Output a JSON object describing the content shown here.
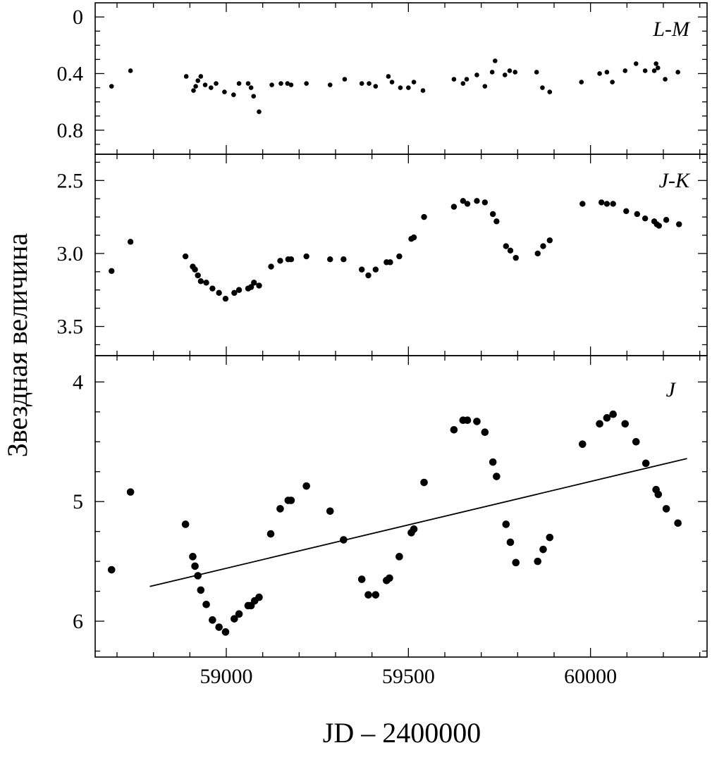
{
  "chart_data": {
    "type": "scatter",
    "xlabel": "JD – 2400000",
    "ylabel": "Звездная величина",
    "x_ticks": [
      "59000",
      "59500",
      "60000"
    ],
    "xlim": [
      58640,
      60320
    ],
    "panels": [
      {
        "label": "L-M",
        "ylim": [
          -0.1,
          0.97
        ],
        "y_ticks": [
          "0",
          "0.4",
          "0.8"
        ],
        "y_tick_values": [
          0,
          0.4,
          0.8
        ],
        "marker": "small",
        "points": [
          [
            58685,
            0.49
          ],
          [
            58737,
            0.38
          ],
          [
            58890,
            0.42
          ],
          [
            58910,
            0.52
          ],
          [
            58916,
            0.49
          ],
          [
            58922,
            0.45
          ],
          [
            58930,
            0.42
          ],
          [
            58942,
            0.48
          ],
          [
            58958,
            0.5
          ],
          [
            58972,
            0.47
          ],
          [
            58995,
            0.53
          ],
          [
            59020,
            0.55
          ],
          [
            59035,
            0.47
          ],
          [
            59060,
            0.47
          ],
          [
            59068,
            0.5
          ],
          [
            59075,
            0.56
          ],
          [
            59090,
            0.67
          ],
          [
            59125,
            0.48
          ],
          [
            59150,
            0.47
          ],
          [
            59168,
            0.47
          ],
          [
            59178,
            0.48
          ],
          [
            59220,
            0.47
          ],
          [
            59285,
            0.48
          ],
          [
            59325,
            0.44
          ],
          [
            59372,
            0.47
          ],
          [
            59392,
            0.47
          ],
          [
            59410,
            0.49
          ],
          [
            59445,
            0.42
          ],
          [
            59455,
            0.46
          ],
          [
            59478,
            0.5
          ],
          [
            59500,
            0.5
          ],
          [
            59515,
            0.46
          ],
          [
            59540,
            0.52
          ],
          [
            59625,
            0.44
          ],
          [
            59650,
            0.47
          ],
          [
            59660,
            0.44
          ],
          [
            59688,
            0.41
          ],
          [
            59710,
            0.49
          ],
          [
            59730,
            0.39
          ],
          [
            59738,
            0.31
          ],
          [
            59765,
            0.41
          ],
          [
            59778,
            0.38
          ],
          [
            59793,
            0.39
          ],
          [
            59852,
            0.39
          ],
          [
            59868,
            0.5
          ],
          [
            59888,
            0.53
          ],
          [
            59975,
            0.46
          ],
          [
            60025,
            0.4
          ],
          [
            60045,
            0.39
          ],
          [
            60060,
            0.46
          ],
          [
            60095,
            0.38
          ],
          [
            60125,
            0.33
          ],
          [
            60150,
            0.38
          ],
          [
            60175,
            0.38
          ],
          [
            60180,
            0.33
          ],
          [
            60185,
            0.36
          ],
          [
            60205,
            0.44
          ],
          [
            60240,
            0.39
          ]
        ]
      },
      {
        "label": "J-K",
        "ylim": [
          2.32,
          3.7
        ],
        "y_ticks": [
          "2.5",
          "3.0",
          "3.5"
        ],
        "y_tick_values": [
          2.5,
          3.0,
          3.5
        ],
        "marker": "medium",
        "points": [
          [
            58685,
            3.12
          ],
          [
            58737,
            2.92
          ],
          [
            58888,
            3.02
          ],
          [
            58908,
            3.09
          ],
          [
            58914,
            3.11
          ],
          [
            58922,
            3.15
          ],
          [
            58930,
            3.19
          ],
          [
            58945,
            3.2
          ],
          [
            58962,
            3.24
          ],
          [
            58980,
            3.27
          ],
          [
            58998,
            3.31
          ],
          [
            59022,
            3.27
          ],
          [
            59035,
            3.25
          ],
          [
            59060,
            3.24
          ],
          [
            59068,
            3.23
          ],
          [
            59076,
            3.2
          ],
          [
            59090,
            3.22
          ],
          [
            59123,
            3.09
          ],
          [
            59148,
            3.05
          ],
          [
            59170,
            3.04
          ],
          [
            59178,
            3.04
          ],
          [
            59220,
            3.02
          ],
          [
            59285,
            3.04
          ],
          [
            59322,
            3.04
          ],
          [
            59372,
            3.11
          ],
          [
            59390,
            3.15
          ],
          [
            59410,
            3.11
          ],
          [
            59440,
            3.06
          ],
          [
            59450,
            3.06
          ],
          [
            59475,
            3.02
          ],
          [
            59508,
            2.9
          ],
          [
            59515,
            2.89
          ],
          [
            59543,
            2.75
          ],
          [
            59625,
            2.68
          ],
          [
            59650,
            2.64
          ],
          [
            59662,
            2.66
          ],
          [
            59688,
            2.64
          ],
          [
            59710,
            2.65
          ],
          [
            59732,
            2.73
          ],
          [
            59742,
            2.78
          ],
          [
            59768,
            2.95
          ],
          [
            59780,
            2.98
          ],
          [
            59795,
            3.03
          ],
          [
            59855,
            3.0
          ],
          [
            59870,
            2.95
          ],
          [
            59888,
            2.91
          ],
          [
            59978,
            2.66
          ],
          [
            60030,
            2.65
          ],
          [
            60045,
            2.66
          ],
          [
            60062,
            2.66
          ],
          [
            60098,
            2.71
          ],
          [
            60128,
            2.73
          ],
          [
            60150,
            2.76
          ],
          [
            60175,
            2.78
          ],
          [
            60182,
            2.8
          ],
          [
            60188,
            2.81
          ],
          [
            60208,
            2.77
          ],
          [
            60243,
            2.8
          ]
        ]
      },
      {
        "label": "J",
        "ylim": [
          3.78,
          6.3
        ],
        "y_ticks": [
          "4",
          "5",
          "6"
        ],
        "y_tick_values": [
          4,
          5,
          6
        ],
        "marker": "large",
        "trend_line": [
          [
            58790,
            5.71
          ],
          [
            60265,
            4.64
          ]
        ],
        "points": [
          [
            58685,
            5.57
          ],
          [
            58737,
            4.92
          ],
          [
            58888,
            5.19
          ],
          [
            58908,
            5.46
          ],
          [
            58914,
            5.54
          ],
          [
            58922,
            5.62
          ],
          [
            58930,
            5.74
          ],
          [
            58945,
            5.86
          ],
          [
            58962,
            5.99
          ],
          [
            58980,
            6.05
          ],
          [
            58998,
            6.09
          ],
          [
            59022,
            5.98
          ],
          [
            59035,
            5.94
          ],
          [
            59060,
            5.87
          ],
          [
            59068,
            5.87
          ],
          [
            59078,
            5.83
          ],
          [
            59090,
            5.8
          ],
          [
            59122,
            5.27
          ],
          [
            59148,
            5.06
          ],
          [
            59170,
            4.99
          ],
          [
            59178,
            4.99
          ],
          [
            59220,
            4.87
          ],
          [
            59285,
            5.08
          ],
          [
            59322,
            5.32
          ],
          [
            59372,
            5.65
          ],
          [
            59390,
            5.78
          ],
          [
            59410,
            5.78
          ],
          [
            59440,
            5.66
          ],
          [
            59448,
            5.64
          ],
          [
            59475,
            5.46
          ],
          [
            59508,
            5.26
          ],
          [
            59515,
            5.23
          ],
          [
            59543,
            4.84
          ],
          [
            59625,
            4.4
          ],
          [
            59650,
            4.32
          ],
          [
            59662,
            4.32
          ],
          [
            59688,
            4.33
          ],
          [
            59710,
            4.42
          ],
          [
            59732,
            4.67
          ],
          [
            59742,
            4.79
          ],
          [
            59768,
            5.19
          ],
          [
            59780,
            5.34
          ],
          [
            59795,
            5.51
          ],
          [
            59855,
            5.5
          ],
          [
            59870,
            5.4
          ],
          [
            59888,
            5.3
          ],
          [
            59978,
            4.52
          ],
          [
            60025,
            4.35
          ],
          [
            60045,
            4.3
          ],
          [
            60062,
            4.27
          ],
          [
            60095,
            4.35
          ],
          [
            60125,
            4.5
          ],
          [
            60152,
            4.68
          ],
          [
            60180,
            4.9
          ],
          [
            60186,
            4.94
          ],
          [
            60208,
            5.06
          ],
          [
            60240,
            5.18
          ]
        ]
      }
    ]
  }
}
